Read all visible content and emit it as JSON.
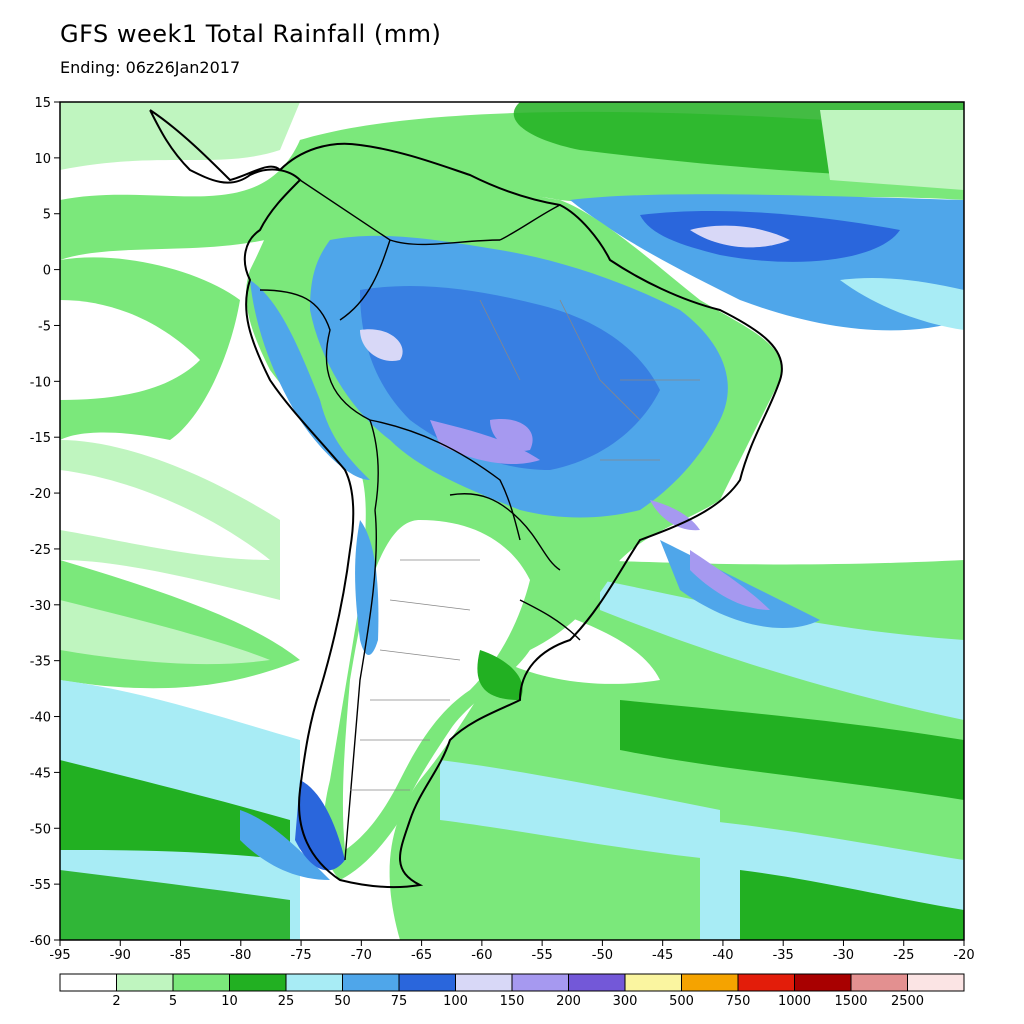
{
  "title": "GFS week1 Total Rainfall (mm)",
  "subtitle": "Ending: 06z26Jan2017",
  "map": {
    "lon_range": [
      -95,
      -20
    ],
    "lat_range": [
      -60,
      15
    ],
    "lon_ticks": [
      "-95",
      "-90",
      "-85",
      "-80",
      "-75",
      "-70",
      "-65",
      "-60",
      "-55",
      "-50",
      "-45",
      "-40",
      "-35",
      "-30",
      "-25",
      "-20"
    ],
    "lat_ticks": [
      "15",
      "10",
      "5",
      "0",
      "-5",
      "-10",
      "-15",
      "-20",
      "-25",
      "-30",
      "-35",
      "-40",
      "-45",
      "-50",
      "-55",
      "-60"
    ]
  },
  "colorbar": {
    "colors": [
      "#ffffff",
      "#bff5bf",
      "#7be87b",
      "#22b022",
      "#a8ecf5",
      "#4fa6ea",
      "#2a66dc",
      "#d8d8f7",
      "#a699f0",
      "#7358d8",
      "#faf5a0",
      "#f5a300",
      "#e31d0a",
      "#a80000",
      "#e39090",
      "#fbe4e4"
    ],
    "labels": [
      "2",
      "5",
      "10",
      "25",
      "50",
      "75",
      "100",
      "150",
      "200",
      "300",
      "500",
      "750",
      "1000",
      "1500",
      "2500"
    ]
  }
}
